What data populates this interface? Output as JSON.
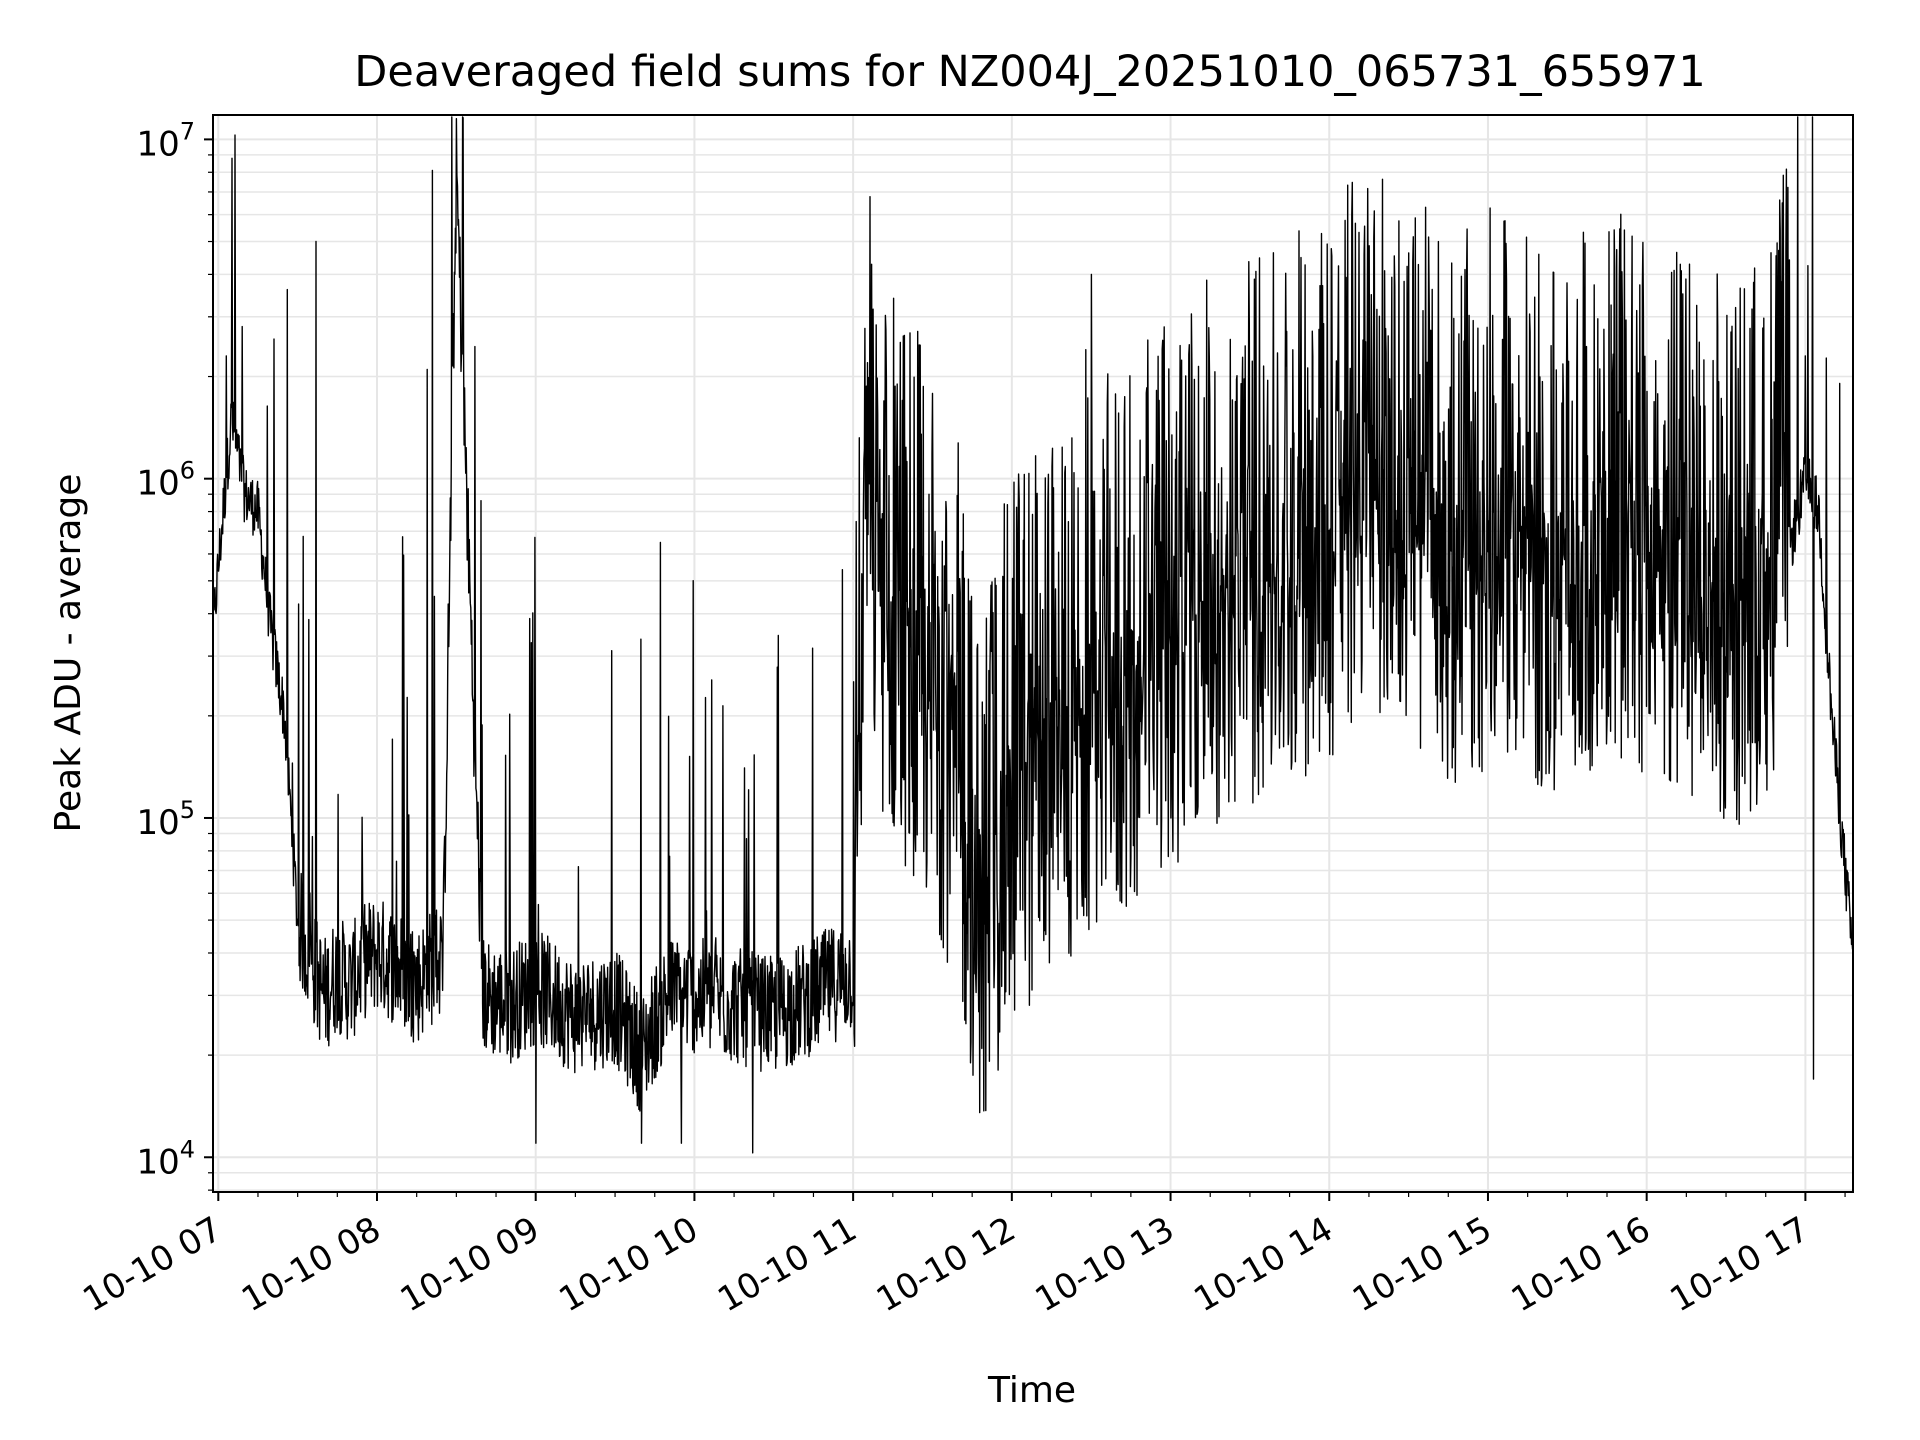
{
  "chart_data": {
    "type": "line",
    "title": "Deaveraged field sums for NZ004J_20251010_065731_655971",
    "xlabel": "Time",
    "ylabel": "Peak ADU - average",
    "yscale": "log",
    "ylim": [
      7900,
      11800000
    ],
    "xlim": [
      "10-10 06:58",
      "10-10 17:18"
    ],
    "grid": true,
    "line_color": "#000000",
    "grid_color": "#e6e6e6",
    "xticks": [
      {
        "label": "10-10 07",
        "hour": 7
      },
      {
        "label": "10-10 08",
        "hour": 8
      },
      {
        "label": "10-10 09",
        "hour": 9
      },
      {
        "label": "10-10 10",
        "hour": 10
      },
      {
        "label": "10-10 11",
        "hour": 11
      },
      {
        "label": "10-10 12",
        "hour": 12
      },
      {
        "label": "10-10 13",
        "hour": 13
      },
      {
        "label": "10-10 14",
        "hour": 14
      },
      {
        "label": "10-10 15",
        "hour": 15
      },
      {
        "label": "10-10 16",
        "hour": 16
      },
      {
        "label": "10-10 17",
        "hour": 17
      }
    ],
    "yticks": [
      {
        "base": "10",
        "exp": "4",
        "value": 10000
      },
      {
        "base": "10",
        "exp": "5",
        "value": 100000
      },
      {
        "base": "10",
        "exp": "6",
        "value": 1000000
      },
      {
        "base": "10",
        "exp": "7",
        "value": 10000000
      }
    ],
    "series": [
      {
        "x": [
          "10-10 06:58",
          "10-10 07:00",
          "10-10 07:05",
          "10-10 07:10",
          "10-10 07:15",
          "10-10 07:20",
          "10-10 07:25",
          "10-10 07:30",
          "10-10 07:35",
          "10-10 07:40",
          "10-10 07:45",
          "10-10 07:50",
          "10-10 07:55",
          "10-10 08:00",
          "10-10 08:10",
          "10-10 08:15",
          "10-10 08:20",
          "10-10 08:25",
          "10-10 08:30",
          "10-10 08:40",
          "10-10 08:50",
          "10-10 09:00",
          "10-10 09:15",
          "10-10 09:30",
          "10-10 09:40",
          "10-10 09:45",
          "10-10 09:50",
          "10-10 10:00",
          "10-10 10:15",
          "10-10 10:30",
          "10-10 10:45",
          "10-10 11:00",
          "10-10 11:05",
          "10-10 11:10",
          "10-10 11:20",
          "10-10 11:30",
          "10-10 11:40",
          "10-10 11:50",
          "10-10 12:00",
          "10-10 12:15",
          "10-10 12:30",
          "10-10 12:45",
          "10-10 13:00",
          "10-10 13:15",
          "10-10 13:30",
          "10-10 13:45",
          "10-10 14:00",
          "10-10 14:15",
          "10-10 14:30",
          "10-10 14:45",
          "10-10 15:00",
          "10-10 15:15",
          "10-10 15:30",
          "10-10 15:45",
          "10-10 16:00",
          "10-10 16:15",
          "10-10 16:30",
          "10-10 16:45",
          "10-10 17:00",
          "10-10 17:05",
          "10-10 17:10",
          "10-10 17:15",
          "10-10 17:18"
        ],
        "y": [
          350000,
          550000,
          1500000,
          900000,
          800000,
          350000,
          200000,
          50000,
          38000,
          30000,
          35000,
          32000,
          38000,
          40000,
          35000,
          32000,
          36000,
          38000,
          8000000,
          30000,
          28000,
          32000,
          26000,
          28000,
          20000,
          25000,
          30000,
          30000,
          28000,
          26000,
          30000,
          35000,
          700000,
          300000,
          200000,
          150000,
          80000,
          30000,
          70000,
          90000,
          120000,
          150000,
          200000,
          250000,
          300000,
          350000,
          400000,
          600000,
          500000,
          300000,
          400000,
          350000,
          300000,
          400000,
          350000,
          300000,
          250000,
          300000,
          1000000,
          800000,
          200000,
          70000,
          40000
        ]
      }
    ],
    "peaks": [
      {
        "x": "10-10 07:03",
        "y": 2300000
      },
      {
        "x": "10-10 07:37",
        "y": 5000000
      },
      {
        "x": "10-10 08:19",
        "y": 2100000
      },
      {
        "x": "10-10 08:21",
        "y": 8100000
      },
      {
        "x": "10-10 12:30",
        "y": 4000000
      },
      {
        "x": "10-10 12:28",
        "y": 2400000
      },
      {
        "x": "10-10 14:38",
        "y": 1900000
      },
      {
        "x": "10-10 17:00",
        "y": 2300000
      }
    ],
    "min_values": [
      {
        "x": "10-10 09:00",
        "y": 11000
      },
      {
        "x": "10-10 09:40",
        "y": 11000
      },
      {
        "x": "10-10 09:55",
        "y": 11000
      },
      {
        "x": "10-10 10:22",
        "y": 10300
      },
      {
        "x": "10-10 17:03",
        "y": 17000
      }
    ]
  }
}
